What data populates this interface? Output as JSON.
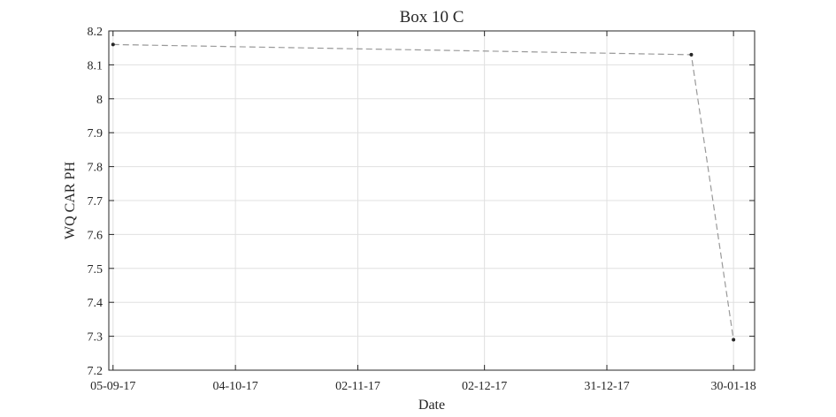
{
  "chart_data": {
    "type": "line",
    "title": "Box 10 C",
    "xlabel": "Date",
    "ylabel": "WQ CAR PH",
    "x_tick_labels": [
      "05-09-17",
      "04-10-17",
      "02-11-17",
      "02-12-17",
      "31-12-17",
      "30-01-18"
    ],
    "x_tick_dates": [
      "2017-09-05",
      "2017-10-04",
      "2017-11-02",
      "2017-12-02",
      "2017-12-31",
      "2018-01-30"
    ],
    "xlim": [
      "2017-09-04",
      "2018-02-04"
    ],
    "y_ticks": [
      "7.2",
      "7.3",
      "7.4",
      "7.5",
      "7.6",
      "7.7",
      "7.8",
      "7.9",
      "8",
      "8.1",
      "8.2"
    ],
    "ylim": [
      7.2,
      8.2
    ],
    "grid": true,
    "series": [
      {
        "x": [
          "2017-09-05",
          "2018-01-20",
          "2018-01-30"
        ],
        "y": [
          8.16,
          8.13,
          7.29
        ],
        "color": "#999999",
        "line_style": "dashed",
        "marker_color": "#262626"
      }
    ]
  }
}
